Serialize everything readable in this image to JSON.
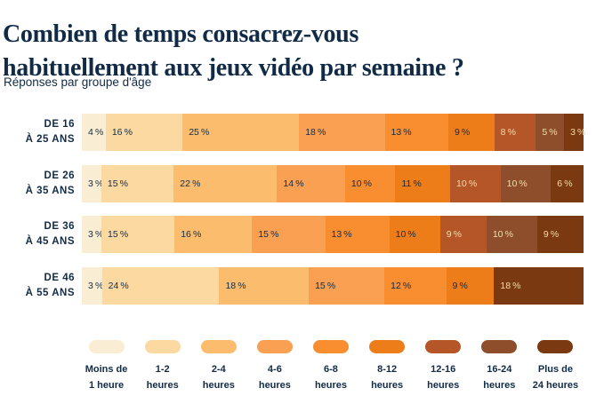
{
  "title_lines": [
    "Combien de temps consacrez-vous",
    "habituellement aux jeux vidéo par semaine ?"
  ],
  "subtitle": "Réponses par groupe d'âge",
  "colors": {
    "background": "#FFFFFF",
    "text_dark": "#112B47",
    "text_light": "#F3DDA9",
    "category_colors": [
      "#F9EED3",
      "#FBD9A0",
      "#FBBC6E",
      "#FAA052",
      "#F88E2F",
      "#EC7D19",
      "#B45628",
      "#8E4E2B",
      "#7A3911"
    ]
  },
  "display": {
    "row_labels": [
      [
        "DE 16",
        "À 25 ANS"
      ],
      [
        "DE 26",
        "À 35 ANS"
      ],
      [
        "DE 36",
        "À 45 ANS"
      ],
      [
        "DE 46",
        "À 55 ANS"
      ]
    ],
    "legend_labels": [
      [
        "Moins de",
        "1 heure"
      ],
      [
        "1-2",
        "heures"
      ],
      [
        "2-4",
        "heures"
      ],
      [
        "4-6",
        "heures"
      ],
      [
        "6-8",
        "heures"
      ],
      [
        "8-12",
        "heures"
      ],
      [
        "12-16",
        "heures"
      ],
      [
        "16-24",
        "heures"
      ],
      [
        "Plus de",
        "24 heures"
      ]
    ],
    "percent_suffix": " %",
    "light_label_from_category_index": 6
  },
  "chart_data": {
    "type": "bar",
    "stacked": true,
    "orientation": "horizontal",
    "unit": "%",
    "title": "Combien de temps consacrez-vous habituellement aux jeux vidéo par semaine ?",
    "subtitle": "Réponses par groupe d'âge",
    "legend_position": "bottom",
    "axis": "none",
    "categories": [
      "Moins de 1 heure",
      "1-2 heures",
      "2-4 heures",
      "4-6 heures",
      "6-8 heures",
      "8-12 heures",
      "12-16 heures",
      "16-24 heures",
      "Plus de 24 heures"
    ],
    "category_colors": [
      "#F9EED3",
      "#FBD9A0",
      "#FBBC6E",
      "#FAA052",
      "#F88E2F",
      "#EC7D19",
      "#B45628",
      "#8E4E2B",
      "#7A3911"
    ],
    "series": [
      {
        "name": "De 16 à 25 ans",
        "values": [
          4,
          16,
          25,
          18,
          13,
          9,
          8,
          5,
          3
        ]
      },
      {
        "name": "De 26 à 35 ans",
        "values": [
          3,
          15,
          22,
          14,
          10,
          11,
          10,
          10,
          6
        ]
      },
      {
        "name": "De 36 à 45 ans",
        "values": [
          3,
          15,
          16,
          15,
          13,
          10,
          9,
          10,
          9
        ]
      },
      {
        "name": "De 46 à 55 ans",
        "values": [
          3,
          24,
          18,
          15,
          12,
          9,
          0,
          0,
          18
        ]
      }
    ]
  }
}
